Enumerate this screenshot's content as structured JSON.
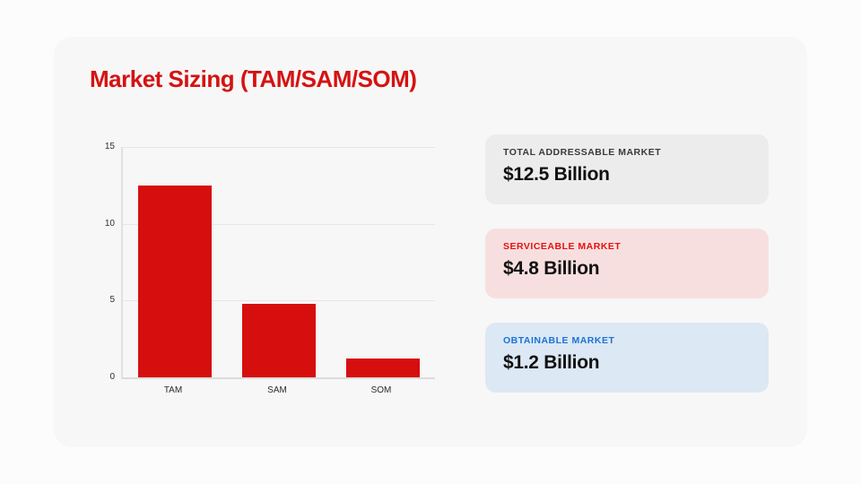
{
  "slide": {
    "title": "Market Sizing (TAM/SAM/SOM)"
  },
  "chart_data": {
    "type": "bar",
    "categories": [
      "TAM",
      "SAM",
      "SOM"
    ],
    "values": [
      12.5,
      4.8,
      1.2
    ],
    "title": "",
    "xlabel": "",
    "ylabel": "",
    "ylim": [
      0,
      15
    ],
    "yticks": [
      0,
      5,
      10,
      15
    ],
    "grid": true,
    "legend": false,
    "bar_color": "#d60e0e"
  },
  "stats": {
    "cards": [
      {
        "label": "TOTAL ADDRESSABLE MARKET",
        "value": "$12.5 Billion",
        "bg": "#ececec",
        "label_color": "#3a3a3a"
      },
      {
        "label": "SERVICEABLE MARKET",
        "value": "$4.8 Billion",
        "bg": "#f8dfdf",
        "label_color": "#e31212"
      },
      {
        "label": "OBTAINABLE MARKET",
        "value": "$1.2 Billion",
        "bg": "#dce8f3",
        "label_color": "#1a73d9"
      }
    ]
  },
  "colors": {
    "page_bg": "#fcfcfc",
    "slide_bg": "#f7f7f7",
    "title": "#d51212",
    "value_text": "#111111"
  }
}
